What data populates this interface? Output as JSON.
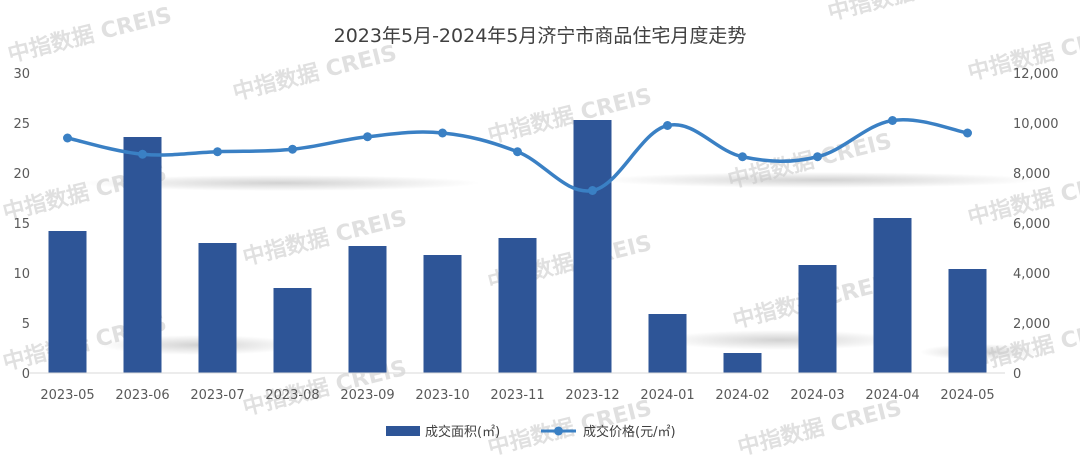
{
  "chart_data": {
    "type": "bar",
    "title": "2023年5月-2024年5月济宁市商品住宅月度走势",
    "categories": [
      "2023-05",
      "2023-06",
      "2023-07",
      "2023-08",
      "2023-09",
      "2023-10",
      "2023-11",
      "2023-12",
      "2024-01",
      "2024-02",
      "2024-03",
      "2024-04",
      "2024-05"
    ],
    "series": [
      {
        "name": "成交面积(㎡)",
        "type": "bar",
        "axis": "left",
        "color": "#2E5597",
        "values": [
          14.2,
          23.6,
          13.0,
          8.5,
          12.7,
          11.8,
          13.5,
          25.3,
          5.9,
          2.0,
          10.8,
          15.5,
          10.4
        ]
      },
      {
        "name": "成交价格(元/㎡)",
        "type": "line",
        "axis": "right",
        "color": "#3A80C4",
        "values": [
          9400,
          8750,
          8850,
          8950,
          9450,
          9600,
          8850,
          7300,
          9900,
          8650,
          8650,
          10100,
          9600
        ]
      }
    ],
    "y_left": {
      "min": 0,
      "max": 30,
      "ticks": [
        "0",
        "5",
        "10",
        "15",
        "20",
        "25",
        "30"
      ]
    },
    "y_right": {
      "min": 0,
      "max": 12000,
      "ticks": [
        "0",
        "2,000",
        "4,000",
        "6,000",
        "8,000",
        "10,000",
        "12,000"
      ]
    },
    "grid": false,
    "legend_position": "bottom"
  },
  "watermark": "中指数据 CREIS"
}
